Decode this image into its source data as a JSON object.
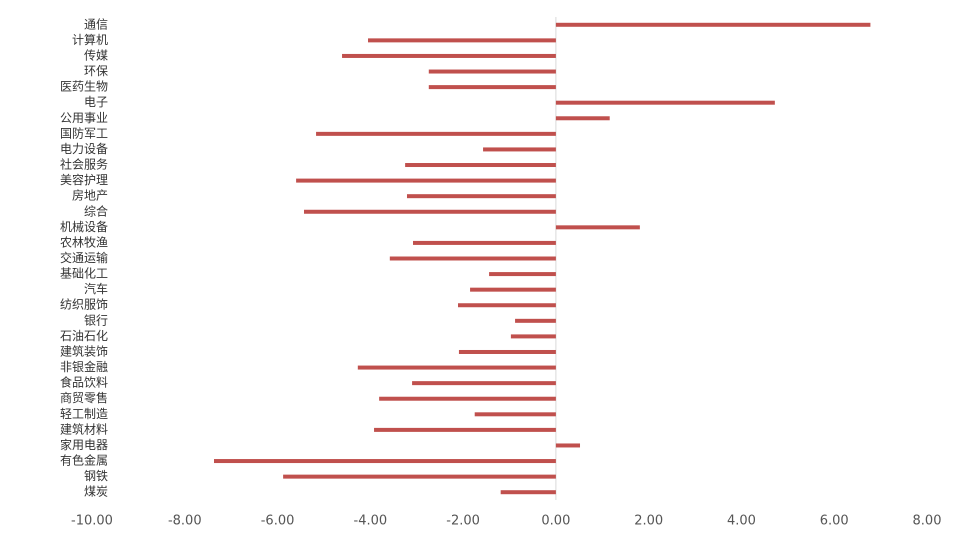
{
  "chart_data": {
    "type": "hbar",
    "color": "#c0504d",
    "categories": [
      "通信",
      "计算机",
      "传媒",
      "环保",
      "医药生物",
      "电子",
      "公用事业",
      "国防军工",
      "电力设备",
      "社会服务",
      "美容护理",
      "房地产",
      "综合",
      "机械设备",
      "农林牧渔",
      "交通运输",
      "基础化工",
      "汽车",
      "纺织服饰",
      "银行",
      "石油石化",
      "建筑装饰",
      "非银金融",
      "食品饮料",
      "商贸零售",
      "轻工制造",
      "建筑材料",
      "家用电器",
      "有色金属",
      "钢铁",
      "煤炭"
    ],
    "values": [
      6.78,
      -4.05,
      -4.61,
      -2.74,
      -2.74,
      4.72,
      1.16,
      -5.17,
      -1.57,
      -3.25,
      -5.6,
      -3.21,
      -5.43,
      1.81,
      -3.08,
      -3.58,
      -1.44,
      -1.85,
      -2.11,
      -0.88,
      -0.97,
      -2.09,
      -4.27,
      -3.1,
      -3.81,
      -1.75,
      -3.92,
      0.52,
      -7.37,
      -5.88,
      -1.19
    ],
    "xlim": [
      -10,
      8
    ],
    "xticks": [
      {
        "value": -10,
        "label": "-10.00"
      },
      {
        "value": -8,
        "label": "-8.00"
      },
      {
        "value": -6,
        "label": "-6.00"
      },
      {
        "value": -4,
        "label": "-4.00"
      },
      {
        "value": -2,
        "label": "-2.00"
      },
      {
        "value": 0,
        "label": "0.00"
      },
      {
        "value": 2,
        "label": "2.00"
      },
      {
        "value": 4,
        "label": "4.00"
      },
      {
        "value": 6,
        "label": "6.00"
      },
      {
        "value": 8,
        "label": "8.00"
      }
    ],
    "grid": false
  }
}
